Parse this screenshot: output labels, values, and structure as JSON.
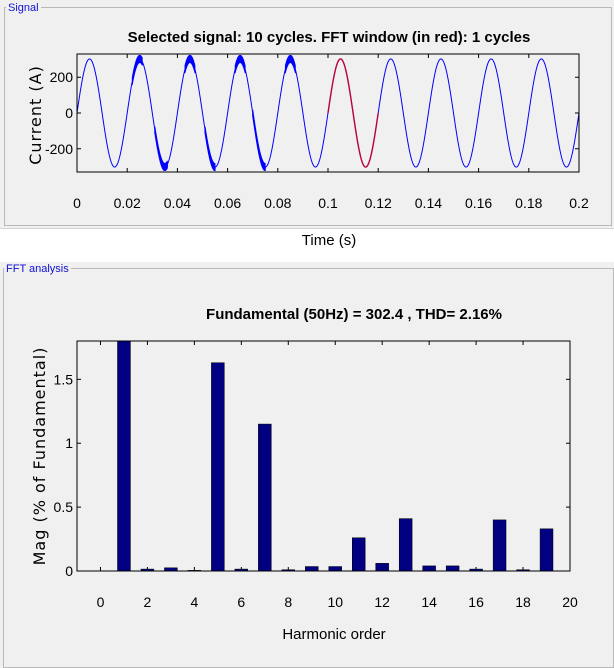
{
  "signal_panel": {
    "group_label": "Signal"
  },
  "fft_panel": {
    "group_label": "FFT analysis"
  },
  "colors": {
    "signal": "#0000ff",
    "fft_window": "#c00040",
    "bars": "#000080",
    "panel_bg": "#f0f0f0",
    "group_label": "#1010d8"
  },
  "chart_data": [
    {
      "type": "line",
      "title": "Selected signal: 10 cycles. FFT window (in red): 1 cycles",
      "xlabel": "Time (s)",
      "ylabel": "Current (A)",
      "xlim": [
        0,
        0.2
      ],
      "ylim": [
        -330,
        330
      ],
      "x_ticks": [
        "0",
        "0.02",
        "0.04",
        "0.06",
        "0.08",
        "0.1",
        "0.12",
        "0.14",
        "0.16",
        "0.18",
        "0.2"
      ],
      "y_ticks": [
        "-200",
        "0",
        "200"
      ],
      "series": [
        {
          "amplitude": 302.4,
          "frequency_hz": 50,
          "cycles": 10,
          "distorted_regions_s": [
            [
              0.022,
              0.026
            ],
            [
              0.031,
              0.036
            ],
            [
              0.043,
              0.047
            ],
            [
              0.051,
              0.055
            ],
            [
              0.063,
              0.067
            ],
            [
              0.07,
              0.075
            ],
            [
              0.083,
              0.087
            ]
          ]
        }
      ],
      "fft_window_s": [
        0.1,
        0.12
      ],
      "grid": false
    },
    {
      "type": "bar",
      "title": "Fundamental (50Hz) = 302.4 , THD= 2.16%",
      "xlabel": "Harmonic order",
      "ylabel": "Mag (% of Fundamental)",
      "xlim": [
        -1,
        20
      ],
      "ylim": [
        0,
        1.8
      ],
      "x_ticks": [
        "0",
        "2",
        "4",
        "6",
        "8",
        "10",
        "12",
        "14",
        "16",
        "18",
        "20"
      ],
      "y_ticks": [
        "0",
        "0.5",
        "1",
        "1.5"
      ],
      "categories": [
        0,
        1,
        2,
        3,
        4,
        5,
        6,
        7,
        8,
        9,
        10,
        11,
        12,
        13,
        14,
        15,
        16,
        17,
        18,
        19
      ],
      "values": [
        0,
        1.8,
        0.015,
        0.025,
        0.005,
        1.63,
        0.015,
        1.15,
        0.01,
        0.035,
        0.035,
        0.26,
        0.06,
        0.41,
        0.04,
        0.04,
        0.015,
        0.4,
        0.01,
        0.33
      ],
      "grid": false
    }
  ]
}
